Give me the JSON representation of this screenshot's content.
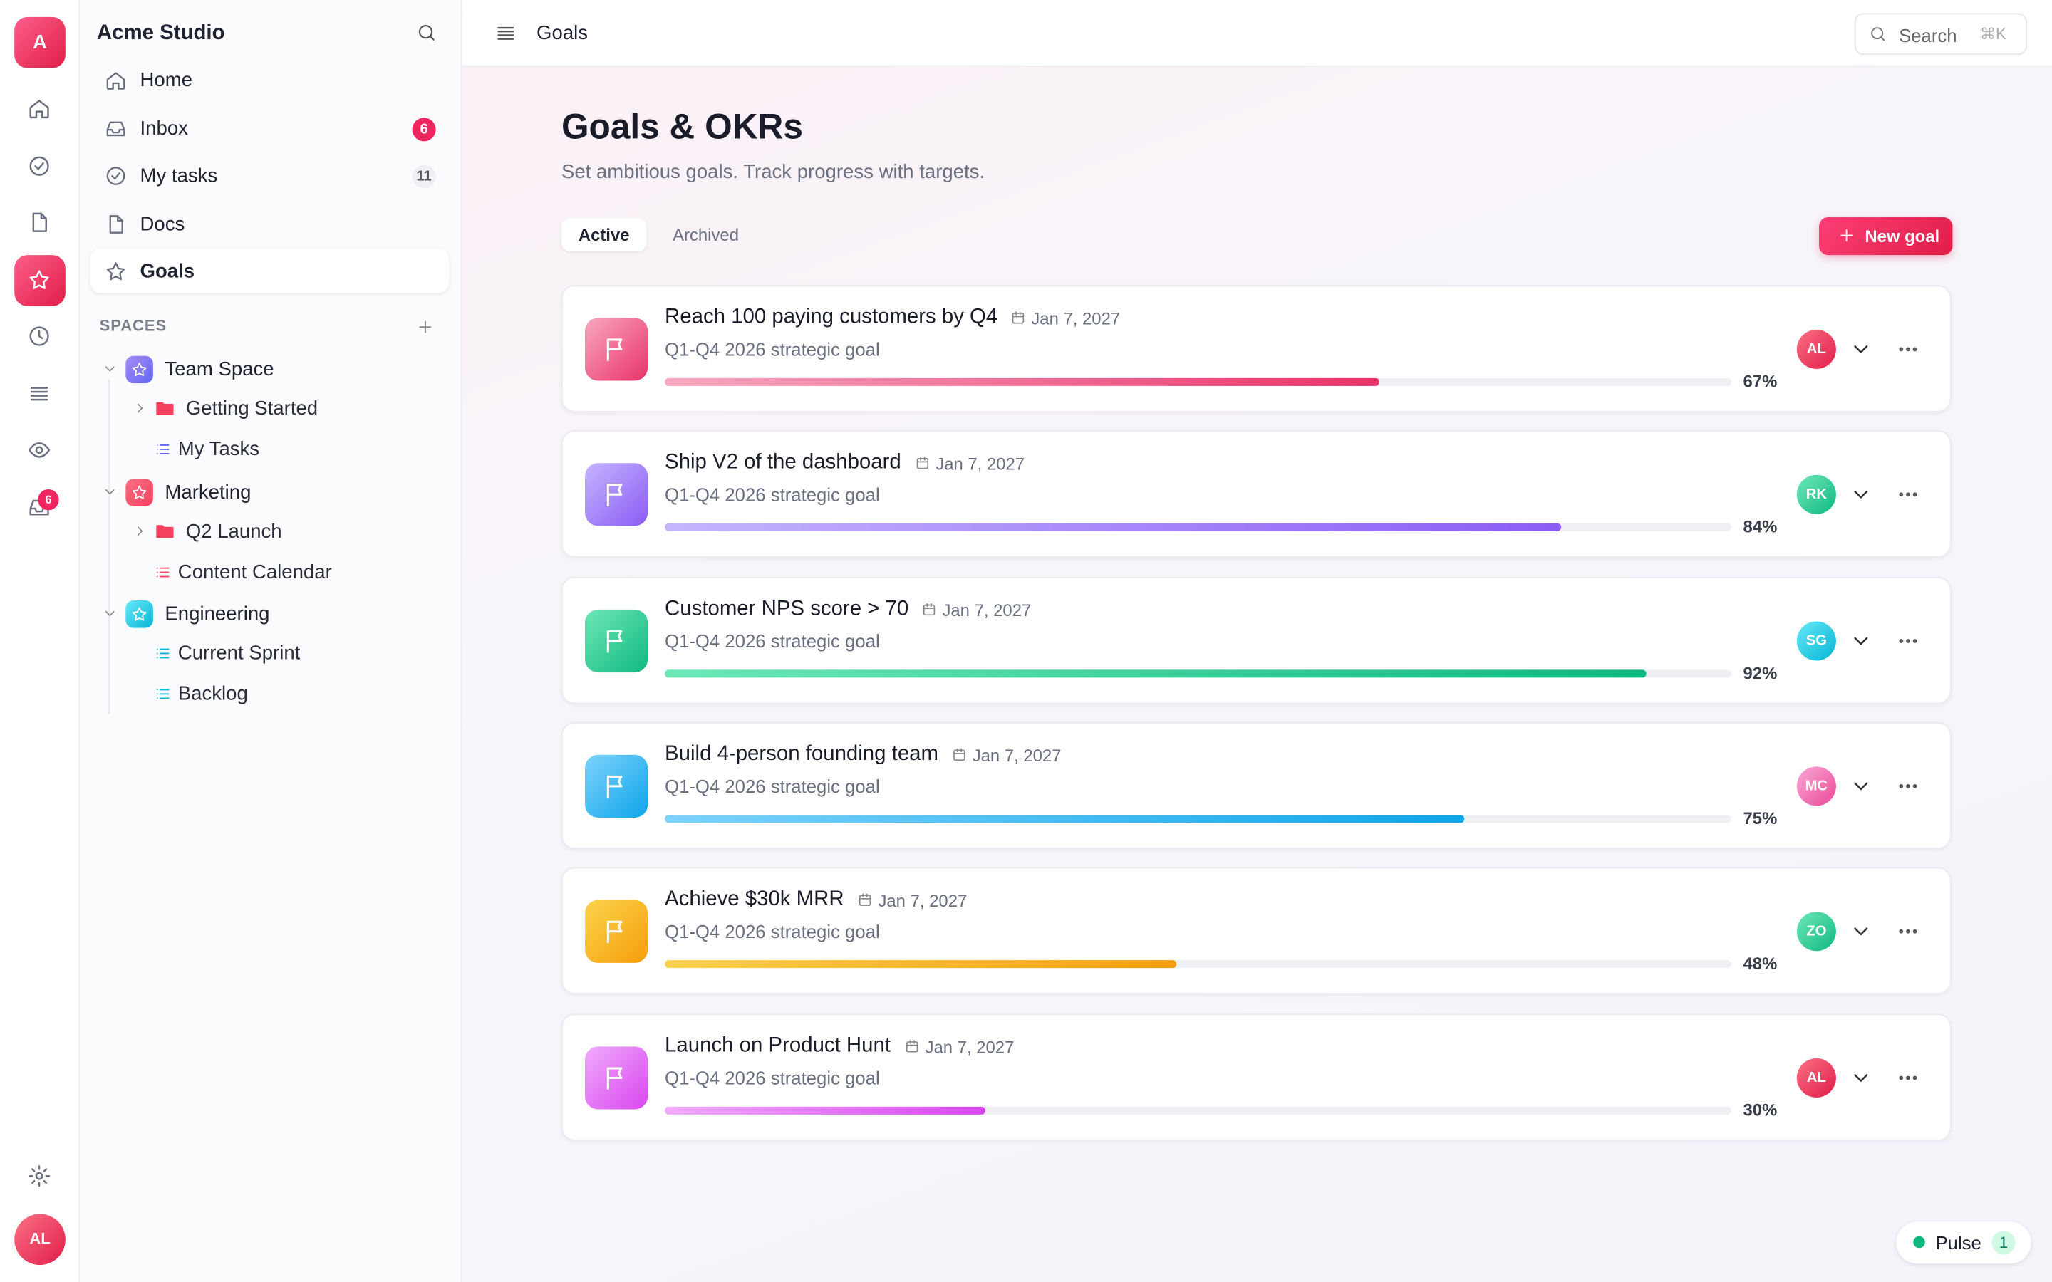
{
  "rail": {
    "workspace_initial": "A",
    "inbox_badge": "6",
    "user_initials": "AL"
  },
  "sidebar": {
    "workspace": "Acme Studio",
    "nav": [
      {
        "label": "Home"
      },
      {
        "label": "Inbox",
        "badge": "6"
      },
      {
        "label": "My tasks",
        "badge": "11"
      },
      {
        "label": "Docs"
      },
      {
        "label": "Goals"
      }
    ],
    "spaces_heading": "SPACES",
    "spaces": [
      {
        "name": "Team Space",
        "color": [
          "#a78bfa",
          "#6366f1"
        ],
        "children": [
          {
            "label": "Getting Started",
            "kind": "folder"
          },
          {
            "label": "My Tasks",
            "kind": "list"
          }
        ]
      },
      {
        "name": "Marketing",
        "color": [
          "#fb7185",
          "#f43f5e"
        ],
        "children": [
          {
            "label": "Q2 Launch",
            "kind": "folder"
          },
          {
            "label": "Content Calendar",
            "kind": "list"
          }
        ]
      },
      {
        "name": "Engineering",
        "color": [
          "#67e8f9",
          "#06b6d4"
        ],
        "children": [
          {
            "label": "Current Sprint",
            "kind": "list"
          },
          {
            "label": "Backlog",
            "kind": "list"
          }
        ]
      }
    ]
  },
  "topbar": {
    "title": "Goals",
    "search": "Search",
    "shortcut": "⌘K"
  },
  "header": {
    "title": "Goals & OKRs",
    "subtitle": "Set ambitious goals. Track progress with targets.",
    "tabs": [
      "Active",
      "Archived"
    ],
    "button": "New goal"
  },
  "goals": [
    {
      "title": "Reach 100 paying customers by Q4",
      "date": "Jan 7, 2027",
      "subtitle": "Q1-Q4 2026 strategic goal",
      "progress": 67,
      "progress_label": "67%",
      "owner": "AL",
      "color": [
        "#f9a8c0",
        "#e8336b"
      ],
      "owner_color": [
        "#fb7185",
        "#e11d48"
      ]
    },
    {
      "title": "Ship V2 of the dashboard",
      "date": "Jan 7, 2027",
      "subtitle": "Q1-Q4 2026 strategic goal",
      "progress": 84,
      "progress_label": "84%",
      "owner": "RK",
      "color": [
        "#c4b5fd",
        "#8b5cf6"
      ],
      "owner_color": [
        "#6ee7b7",
        "#10b981"
      ]
    },
    {
      "title": "Customer NPS score > 70",
      "date": "Jan 7, 2027",
      "subtitle": "Q1-Q4 2026 strategic goal",
      "progress": 92,
      "progress_label": "92%",
      "owner": "SG",
      "color": [
        "#6ee7b7",
        "#10b981"
      ],
      "owner_color": [
        "#67e8f9",
        "#06b6d4"
      ]
    },
    {
      "title": "Build 4-person founding team",
      "date": "Jan 7, 2027",
      "subtitle": "Q1-Q4 2026 strategic goal",
      "progress": 75,
      "progress_label": "75%",
      "owner": "MC",
      "color": [
        "#7dd3fc",
        "#0ea5e9"
      ],
      "owner_color": [
        "#f9a8d4",
        "#ec4899"
      ]
    },
    {
      "title": "Achieve $30k MRR",
      "date": "Jan 7, 2027",
      "subtitle": "Q1-Q4 2026 strategic goal",
      "progress": 48,
      "progress_label": "48%",
      "owner": "ZO",
      "color": [
        "#fcd34d",
        "#f59e0b"
      ],
      "owner_color": [
        "#6ee7b7",
        "#10b981"
      ]
    },
    {
      "title": "Launch on Product Hunt",
      "date": "Jan 7, 2027",
      "subtitle": "Q1-Q4 2026 strategic goal",
      "progress": 30,
      "progress_label": "30%",
      "owner": "AL",
      "color": [
        "#f0abfc",
        "#d946ef"
      ],
      "owner_color": [
        "#fb7185",
        "#e11d48"
      ]
    }
  ],
  "pulse": {
    "label": "Pulse",
    "count": "1"
  }
}
